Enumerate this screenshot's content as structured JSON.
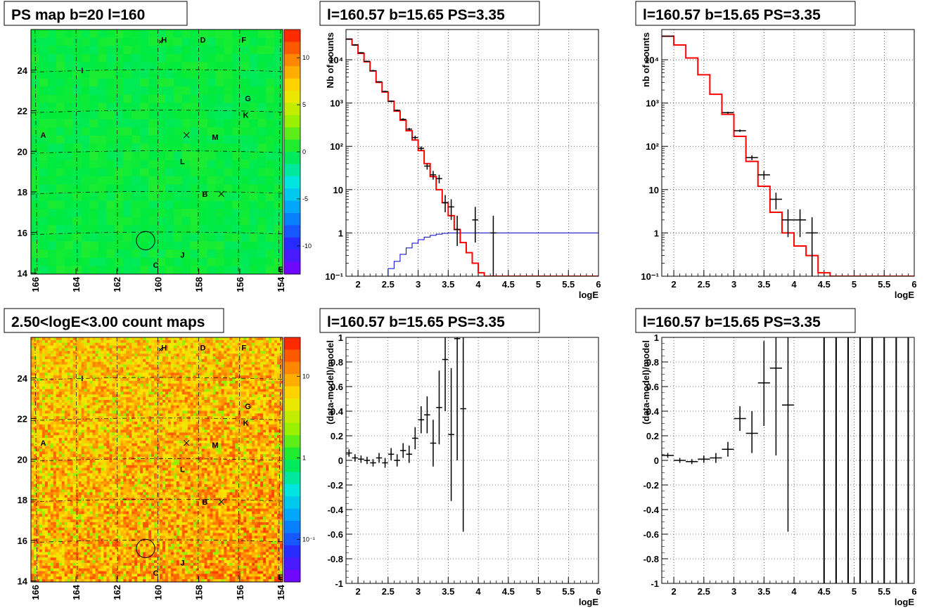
{
  "panels": [
    {
      "id": "ps-map",
      "title": "PS map b=20 l=160",
      "type": "heatmap",
      "map_type": "ps",
      "x_ticks": [
        "166",
        "164",
        "162",
        "160",
        "158",
        "156",
        "154"
      ],
      "y_ticks": [
        "24",
        "22",
        "20",
        "18",
        "16",
        "14"
      ],
      "colorbar_ticks": [
        "10",
        "5",
        "0",
        "-5",
        "-10"
      ],
      "colorbar_range": [
        -13,
        13
      ],
      "sources": [
        {
          "label": "H",
          "l": 159.7,
          "b": 25.5
        },
        {
          "label": "D",
          "l": 157.8,
          "b": 25.5
        },
        {
          "label": "F",
          "l": 155.8,
          "b": 25.5
        },
        {
          "label": "I",
          "l": 163.7,
          "b": 24.0
        },
        {
          "label": "G",
          "l": 155.6,
          "b": 22.6
        },
        {
          "label": "K",
          "l": 155.7,
          "b": 21.8
        },
        {
          "label": "A",
          "l": 165.6,
          "b": 20.8
        },
        {
          "label": "M",
          "l": 157.2,
          "b": 20.7
        },
        {
          "label": "L",
          "l": 158.8,
          "b": 19.5
        },
        {
          "label": "B",
          "l": 157.7,
          "b": 17.9
        },
        {
          "label": "J",
          "l": 158.8,
          "b": 14.9
        },
        {
          "label": "C",
          "l": 160.1,
          "b": 14.4
        },
        {
          "label": "E",
          "l": 154.0,
          "b": 14.2
        }
      ],
      "crosses": [
        {
          "l": 158.6,
          "b": 20.8
        },
        {
          "l": 156.9,
          "b": 17.9
        }
      ],
      "circle": {
        "l": 160.6,
        "b": 15.6,
        "r": 0.45
      }
    },
    {
      "id": "spectrum-all",
      "title": "l=160.57 b=15.65 PS=3.35",
      "type": "histogram",
      "xlabel": "logE",
      "ylabel": "Nb of counts",
      "xlim": [
        1.8,
        6
      ],
      "x_ticks": [
        "2",
        "2.5",
        "3",
        "3.5",
        "4",
        "4.5",
        "5",
        "5.5",
        "6"
      ],
      "y_log": true,
      "ylim": [
        0.1,
        50000
      ],
      "y_ticks": [
        "10⁻¹",
        "1",
        "10",
        "10²",
        "10³",
        "10⁴"
      ],
      "model_step": {
        "edges": [
          1.8,
          1.9,
          2.0,
          2.1,
          2.2,
          2.3,
          2.4,
          2.5,
          2.6,
          2.7,
          2.8,
          2.9,
          3.0,
          3.1,
          3.2,
          3.3,
          3.4,
          3.5,
          3.6,
          3.7,
          3.8,
          3.9,
          4.0,
          4.1,
          4.2,
          4.3,
          6.0
        ],
        "values": [
          30000,
          22000,
          14000,
          9000,
          5500,
          3000,
          1800,
          1100,
          650,
          400,
          230,
          140,
          80,
          40,
          20,
          10,
          5,
          2.5,
          1.2,
          0.6,
          0.35,
          0.2,
          0.12,
          0.1,
          0.1,
          0.1
        ]
      },
      "efficiency_step": {
        "edges": [
          2.4,
          2.5,
          2.6,
          2.7,
          2.8,
          2.9,
          3.0,
          3.1,
          3.2,
          3.3,
          3.4,
          3.5,
          3.6,
          6.0
        ],
        "values": [
          0.1,
          0.15,
          0.22,
          0.32,
          0.45,
          0.58,
          0.7,
          0.8,
          0.88,
          0.94,
          0.98,
          1.0,
          1.0
        ],
        "level_before": 0.1
      },
      "data_points": [
        {
          "x": 1.85,
          "y": 30000,
          "xe": 0.05,
          "ylo": 29000,
          "yhi": 31000
        },
        {
          "x": 1.95,
          "y": 22000,
          "xe": 0.05,
          "ylo": 21000,
          "yhi": 23000
        },
        {
          "x": 2.05,
          "y": 14500,
          "xe": 0.05,
          "ylo": 14000,
          "yhi": 15000
        },
        {
          "x": 2.15,
          "y": 9200,
          "xe": 0.05,
          "ylo": 8900,
          "yhi": 9500
        },
        {
          "x": 2.25,
          "y": 5600,
          "xe": 0.05,
          "ylo": 5400,
          "yhi": 5800
        },
        {
          "x": 2.35,
          "y": 3100,
          "xe": 0.05,
          "ylo": 3000,
          "yhi": 3200
        },
        {
          "x": 2.45,
          "y": 1850,
          "xe": 0.05,
          "ylo": 1780,
          "yhi": 1920
        },
        {
          "x": 2.55,
          "y": 1100,
          "xe": 0.05,
          "ylo": 1050,
          "yhi": 1150
        },
        {
          "x": 2.65,
          "y": 680,
          "xe": 0.05,
          "ylo": 650,
          "yhi": 710
        },
        {
          "x": 2.75,
          "y": 420,
          "xe": 0.05,
          "ylo": 395,
          "yhi": 445
        },
        {
          "x": 2.85,
          "y": 250,
          "xe": 0.05,
          "ylo": 232,
          "yhi": 268
        },
        {
          "x": 2.95,
          "y": 160,
          "xe": 0.05,
          "ylo": 145,
          "yhi": 175
        },
        {
          "x": 3.05,
          "y": 90,
          "xe": 0.05,
          "ylo": 80,
          "yhi": 100
        },
        {
          "x": 3.15,
          "y": 35,
          "xe": 0.05,
          "ylo": 29,
          "yhi": 41
        },
        {
          "x": 3.25,
          "y": 22,
          "xe": 0.05,
          "ylo": 17,
          "yhi": 27
        },
        {
          "x": 3.35,
          "y": 18,
          "xe": 0.05,
          "ylo": 14,
          "yhi": 22
        },
        {
          "x": 3.45,
          "y": 5,
          "xe": 0.05,
          "ylo": 3,
          "yhi": 7.5
        },
        {
          "x": 3.55,
          "y": 4,
          "xe": 0.05,
          "ylo": 2,
          "yhi": 6
        },
        {
          "x": 3.65,
          "y": 1.2,
          "xe": 0.05,
          "ylo": 0.5,
          "yhi": 2.5
        },
        {
          "x": 3.95,
          "y": 2,
          "xe": 0.05,
          "ylo": 0.6,
          "yhi": 4
        },
        {
          "x": 4.25,
          "y": 1,
          "xe": 0.05,
          "ylo": 0.1,
          "yhi": 2.5
        }
      ]
    },
    {
      "id": "spectrum-rebinned",
      "title": "l=160.57 b=15.65 PS=3.35",
      "type": "histogram",
      "xlabel": "logE",
      "ylabel": "nb of counts",
      "xlim": [
        1.8,
        6
      ],
      "x_ticks": [
        "2",
        "2.5",
        "3",
        "3.5",
        "4",
        "4.5",
        "5",
        "5.5",
        "6"
      ],
      "y_log": true,
      "ylim": [
        0.1,
        50000
      ],
      "y_ticks": [
        "10⁻¹",
        "1",
        "10",
        "10²",
        "10³",
        "10⁴"
      ],
      "model_step": {
        "edges": [
          1.8,
          2.0,
          2.2,
          2.4,
          2.6,
          2.8,
          3.0,
          3.2,
          3.4,
          3.6,
          3.8,
          4.0,
          4.2,
          4.4,
          4.6,
          6.0
        ],
        "values": [
          35000,
          22000,
          11000,
          4500,
          1600,
          550,
          170,
          45,
          12,
          3,
          1,
          0.5,
          0.3,
          0.12,
          0.1
        ]
      },
      "data_points": [
        {
          "x": 1.9,
          "y": 35000,
          "xe": 0.1,
          "ylo": 34500,
          "yhi": 35500
        },
        {
          "x": 2.9,
          "y": 600,
          "xe": 0.1,
          "ylo": 570,
          "yhi": 630
        },
        {
          "x": 3.1,
          "y": 230,
          "xe": 0.1,
          "ylo": 215,
          "yhi": 245
        },
        {
          "x": 3.3,
          "y": 55,
          "xe": 0.1,
          "ylo": 48,
          "yhi": 62
        },
        {
          "x": 3.5,
          "y": 22,
          "xe": 0.1,
          "ylo": 17,
          "yhi": 27
        },
        {
          "x": 3.7,
          "y": 6,
          "xe": 0.1,
          "ylo": 3.5,
          "yhi": 8.5
        },
        {
          "x": 3.9,
          "y": 2,
          "xe": 0.1,
          "ylo": 0.8,
          "yhi": 3.5
        },
        {
          "x": 4.1,
          "y": 2,
          "xe": 0.1,
          "ylo": 0.8,
          "yhi": 3.5
        },
        {
          "x": 4.3,
          "y": 1,
          "xe": 0.1,
          "ylo": 0.1,
          "yhi": 2.3
        }
      ]
    },
    {
      "id": "count-map",
      "title": "2.50<logE<3.00 count maps",
      "type": "heatmap",
      "map_type": "counts",
      "x_ticks": [
        "166",
        "164",
        "162",
        "160",
        "158",
        "156",
        "154"
      ],
      "y_ticks": [
        "24",
        "22",
        "20",
        "18",
        "16",
        "14"
      ],
      "colorbar_ticks": [
        "10",
        "1",
        "10⁻¹"
      ],
      "colorbar_log": true,
      "colorbar_range": [
        0.03,
        30
      ],
      "sources": [
        {
          "label": "H",
          "l": 159.7,
          "b": 25.5
        },
        {
          "label": "D",
          "l": 157.8,
          "b": 25.5
        },
        {
          "label": "F",
          "l": 155.8,
          "b": 25.5
        },
        {
          "label": "I",
          "l": 163.7,
          "b": 24.0
        },
        {
          "label": "G",
          "l": 155.6,
          "b": 22.6
        },
        {
          "label": "K",
          "l": 155.7,
          "b": 21.8
        },
        {
          "label": "A",
          "l": 165.6,
          "b": 20.8
        },
        {
          "label": "M",
          "l": 157.2,
          "b": 20.7
        },
        {
          "label": "L",
          "l": 158.8,
          "b": 19.5
        },
        {
          "label": "B",
          "l": 157.7,
          "b": 17.9
        },
        {
          "label": "J",
          "l": 158.8,
          "b": 14.9
        },
        {
          "label": "C",
          "l": 160.1,
          "b": 14.4
        },
        {
          "label": "E",
          "l": 154.0,
          "b": 14.2
        }
      ],
      "crosses": [
        {
          "l": 158.6,
          "b": 20.8
        },
        {
          "l": 156.9,
          "b": 17.9
        }
      ],
      "circle": {
        "l": 160.6,
        "b": 15.6,
        "r": 0.45
      }
    },
    {
      "id": "residual-all",
      "title": "l=160.57 b=15.65 PS=3.35",
      "type": "scatter",
      "xlabel": "logE",
      "ylabel": "(data-model)/model",
      "xlim": [
        1.8,
        6
      ],
      "x_ticks": [
        "2",
        "2.5",
        "3",
        "3.5",
        "4",
        "4.5",
        "5",
        "5.5",
        "6"
      ],
      "ylim": [
        -1,
        1
      ],
      "y_ticks": [
        "1",
        "0.8",
        "0.6",
        "0.4",
        "0.2",
        "0",
        "-0.2",
        "-0.4",
        "-0.6",
        "-0.8",
        "-1"
      ],
      "data_points": [
        {
          "x": 1.85,
          "y": 0.06,
          "xe": 0.05,
          "ylo": 0.03,
          "yhi": 0.09
        },
        {
          "x": 1.95,
          "y": 0.02,
          "xe": 0.05,
          "ylo": -0.01,
          "yhi": 0.05
        },
        {
          "x": 2.05,
          "y": 0.01,
          "xe": 0.05,
          "ylo": -0.02,
          "yhi": 0.04
        },
        {
          "x": 2.15,
          "y": 0.0,
          "xe": 0.05,
          "ylo": -0.03,
          "yhi": 0.03
        },
        {
          "x": 2.25,
          "y": -0.02,
          "xe": 0.05,
          "ylo": -0.05,
          "yhi": 0.01
        },
        {
          "x": 2.35,
          "y": 0.02,
          "xe": 0.05,
          "ylo": -0.02,
          "yhi": 0.06
        },
        {
          "x": 2.45,
          "y": -0.02,
          "xe": 0.05,
          "ylo": -0.06,
          "yhi": 0.02
        },
        {
          "x": 2.55,
          "y": 0.05,
          "xe": 0.05,
          "ylo": 0.0,
          "yhi": 0.1
        },
        {
          "x": 2.65,
          "y": 0.0,
          "xe": 0.05,
          "ylo": -0.05,
          "yhi": 0.05
        },
        {
          "x": 2.75,
          "y": 0.08,
          "xe": 0.05,
          "ylo": 0.02,
          "yhi": 0.14
        },
        {
          "x": 2.85,
          "y": 0.05,
          "xe": 0.05,
          "ylo": -0.02,
          "yhi": 0.12
        },
        {
          "x": 2.95,
          "y": 0.18,
          "xe": 0.05,
          "ylo": 0.09,
          "yhi": 0.27
        },
        {
          "x": 3.05,
          "y": 0.33,
          "xe": 0.05,
          "ylo": 0.22,
          "yhi": 0.44
        },
        {
          "x": 3.15,
          "y": 0.37,
          "xe": 0.05,
          "ylo": 0.22,
          "yhi": 0.52
        },
        {
          "x": 3.25,
          "y": 0.14,
          "xe": 0.05,
          "ylo": -0.05,
          "yhi": 0.33
        },
        {
          "x": 3.35,
          "y": 0.43,
          "xe": 0.05,
          "ylo": 0.13,
          "yhi": 0.73
        },
        {
          "x": 3.45,
          "y": 0.82,
          "xe": 0.05,
          "ylo": 0.4,
          "yhi": 1.0
        },
        {
          "x": 3.55,
          "y": 0.21,
          "xe": 0.05,
          "ylo": -0.33,
          "yhi": 0.75
        },
        {
          "x": 3.65,
          "y": 0.99,
          "xe": 0.05,
          "ylo": 0.0,
          "yhi": 1.0
        },
        {
          "x": 3.75,
          "y": 0.42,
          "xe": 0.05,
          "ylo": -0.58,
          "yhi": 1.0
        }
      ]
    },
    {
      "id": "residual-rebinned",
      "title": "l=160.57 b=15.65 PS=3.35",
      "type": "scatter",
      "xlabel": "logE",
      "ylabel": "(data-model)/model",
      "xlim": [
        1.8,
        6
      ],
      "x_ticks": [
        "2",
        "2.5",
        "3",
        "3.5",
        "4",
        "4.5",
        "5",
        "5.5",
        "6"
      ],
      "ylim": [
        -1,
        1
      ],
      "y_ticks": [
        "1",
        "0.8",
        "0.6",
        "0.4",
        "0.2",
        "0",
        "-0.2",
        "-0.4",
        "-0.6",
        "-0.8",
        "-1"
      ],
      "data_points": [
        {
          "x": 1.9,
          "y": 0.04,
          "xe": 0.1,
          "ylo": 0.02,
          "yhi": 0.06
        },
        {
          "x": 2.1,
          "y": 0.0,
          "xe": 0.1,
          "ylo": -0.02,
          "yhi": 0.02
        },
        {
          "x": 2.3,
          "y": -0.01,
          "xe": 0.1,
          "ylo": -0.03,
          "yhi": 0.01
        },
        {
          "x": 2.5,
          "y": 0.01,
          "xe": 0.1,
          "ylo": -0.02,
          "yhi": 0.04
        },
        {
          "x": 2.7,
          "y": 0.02,
          "xe": 0.1,
          "ylo": -0.02,
          "yhi": 0.06
        },
        {
          "x": 2.9,
          "y": 0.09,
          "xe": 0.1,
          "ylo": 0.03,
          "yhi": 0.15
        },
        {
          "x": 3.1,
          "y": 0.34,
          "xe": 0.1,
          "ylo": 0.24,
          "yhi": 0.44
        },
        {
          "x": 3.3,
          "y": 0.22,
          "xe": 0.1,
          "ylo": 0.06,
          "yhi": 0.4
        },
        {
          "x": 3.5,
          "y": 0.63,
          "xe": 0.1,
          "ylo": 0.28,
          "yhi": 0.97
        },
        {
          "x": 3.7,
          "y": 0.75,
          "xe": 0.1,
          "ylo": 0.04,
          "yhi": 1.0
        },
        {
          "x": 3.9,
          "y": 0.45,
          "xe": 0.1,
          "ylo": -0.58,
          "yhi": 1.0
        }
      ],
      "full_range_bars_x": [
        4.5,
        4.7,
        4.9,
        5.1,
        5.3,
        5.5,
        5.7,
        5.9
      ]
    }
  ]
}
